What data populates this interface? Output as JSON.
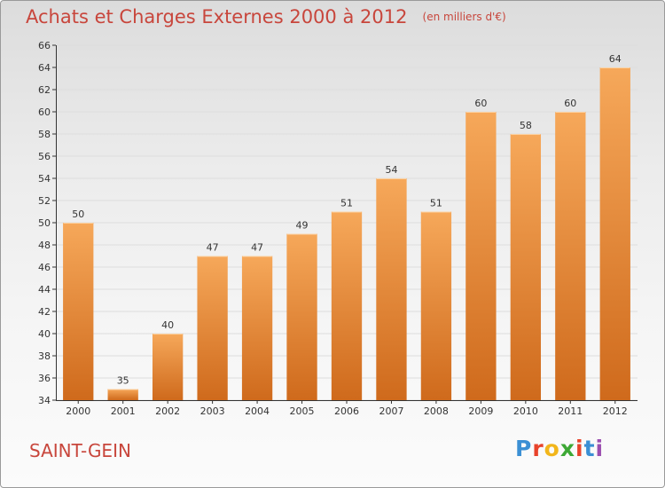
{
  "header": {
    "title": "Achats et Charges Externes 2000 à 2012",
    "subtitle": "(en milliers d'€)"
  },
  "location": "SAINT-GEIN",
  "logo": {
    "text": "Proxiti",
    "letter_colors": [
      "#3b8fd4",
      "#e8432b",
      "#f2b61b",
      "#3da835",
      "#e8432b",
      "#3b8fd4",
      "#9b4fb0"
    ]
  },
  "colors": {
    "title": "#c8463c",
    "bar_top": "#f6a85a",
    "bar_bottom": "#cf6a1c",
    "grid": "#dddddd",
    "axis": "#333333"
  },
  "chart_data": {
    "type": "bar",
    "title": "Achats et Charges Externes 2000 à 2012",
    "subtitle": "(en milliers d'€)",
    "categories": [
      "2000",
      "2001",
      "2002",
      "2003",
      "2004",
      "2005",
      "2006",
      "2007",
      "2008",
      "2009",
      "2010",
      "2011",
      "2012"
    ],
    "values": [
      50,
      35,
      40,
      47,
      47,
      49,
      51,
      54,
      51,
      60,
      58,
      60,
      64
    ],
    "ylim": [
      34,
      66
    ],
    "yticks": [
      34,
      36,
      38,
      40,
      42,
      44,
      46,
      48,
      50,
      52,
      54,
      56,
      58,
      60,
      62,
      64,
      66
    ],
    "grid": true,
    "data_labels": true
  }
}
